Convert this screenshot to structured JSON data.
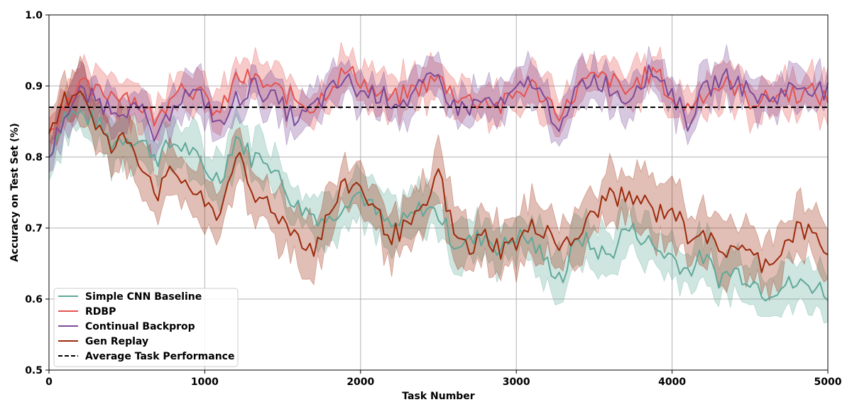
{
  "chart_data": {
    "type": "line",
    "title": "",
    "xlabel": "Task Number",
    "ylabel": "Accuracy on Test Set (%)",
    "xlim": [
      0,
      5000
    ],
    "ylim": [
      0.5,
      1.0
    ],
    "x_ticks": [
      0,
      1000,
      2000,
      3000,
      4000,
      5000
    ],
    "y_ticks": [
      0.5,
      0.6,
      0.7,
      0.8,
      0.9,
      1.0
    ],
    "x_tick_labels": [
      "0",
      "1000",
      "2000",
      "3000",
      "4000",
      "5000"
    ],
    "y_tick_labels": [
      "0.5",
      "0.6",
      "0.7",
      "0.8",
      "0.9",
      "1.0"
    ],
    "grid": true,
    "legend_position": "bottom-left",
    "x": [
      0,
      100,
      200,
      300,
      400,
      500,
      600,
      700,
      800,
      900,
      1000,
      1100,
      1200,
      1300,
      1400,
      1500,
      1600,
      1700,
      1800,
      1900,
      2000,
      2100,
      2200,
      2300,
      2400,
      2500,
      2600,
      2700,
      2800,
      2900,
      3000,
      3100,
      3200,
      3300,
      3400,
      3500,
      3600,
      3700,
      3800,
      3900,
      4000,
      4100,
      4200,
      4300,
      4400,
      4500,
      4600,
      4700,
      4800,
      4900,
      5000
    ],
    "series": [
      {
        "name": "Simple CNN Baseline",
        "color": "#5fa898",
        "band": 0.03,
        "values": [
          0.8,
          0.86,
          0.86,
          0.85,
          0.82,
          0.83,
          0.82,
          0.8,
          0.82,
          0.81,
          0.78,
          0.77,
          0.83,
          0.8,
          0.8,
          0.76,
          0.73,
          0.72,
          0.71,
          0.74,
          0.75,
          0.72,
          0.7,
          0.71,
          0.73,
          0.72,
          0.68,
          0.68,
          0.69,
          0.67,
          0.69,
          0.68,
          0.65,
          0.63,
          0.69,
          0.67,
          0.66,
          0.7,
          0.69,
          0.67,
          0.66,
          0.64,
          0.66,
          0.63,
          0.64,
          0.63,
          0.61,
          0.62,
          0.62,
          0.62,
          0.61
        ]
      },
      {
        "name": "RDBP",
        "color": "#e5524f",
        "band": 0.025,
        "values": [
          0.83,
          0.88,
          0.9,
          0.89,
          0.89,
          0.89,
          0.87,
          0.85,
          0.9,
          0.9,
          0.88,
          0.86,
          0.91,
          0.91,
          0.9,
          0.89,
          0.88,
          0.87,
          0.9,
          0.92,
          0.91,
          0.89,
          0.88,
          0.89,
          0.9,
          0.91,
          0.89,
          0.88,
          0.88,
          0.87,
          0.89,
          0.9,
          0.88,
          0.86,
          0.9,
          0.91,
          0.91,
          0.89,
          0.91,
          0.92,
          0.88,
          0.87,
          0.89,
          0.9,
          0.9,
          0.88,
          0.88,
          0.89,
          0.89,
          0.89,
          0.88
        ]
      },
      {
        "name": "Continual Backprop",
        "color": "#7c4a98",
        "band": 0.025,
        "values": [
          0.8,
          0.86,
          0.89,
          0.88,
          0.87,
          0.87,
          0.86,
          0.82,
          0.88,
          0.89,
          0.88,
          0.84,
          0.88,
          0.9,
          0.89,
          0.87,
          0.85,
          0.87,
          0.89,
          0.91,
          0.89,
          0.89,
          0.88,
          0.88,
          0.9,
          0.91,
          0.87,
          0.87,
          0.88,
          0.87,
          0.89,
          0.91,
          0.87,
          0.84,
          0.9,
          0.91,
          0.9,
          0.88,
          0.91,
          0.92,
          0.89,
          0.85,
          0.89,
          0.91,
          0.91,
          0.89,
          0.88,
          0.89,
          0.9,
          0.9,
          0.89
        ]
      },
      {
        "name": "Gen Replay",
        "color": "#9c2a0c",
        "band": 0.035,
        "values": [
          0.82,
          0.88,
          0.9,
          0.85,
          0.81,
          0.83,
          0.79,
          0.75,
          0.78,
          0.76,
          0.73,
          0.72,
          0.81,
          0.74,
          0.74,
          0.71,
          0.69,
          0.67,
          0.72,
          0.76,
          0.76,
          0.72,
          0.69,
          0.7,
          0.72,
          0.78,
          0.69,
          0.67,
          0.69,
          0.67,
          0.68,
          0.7,
          0.7,
          0.67,
          0.69,
          0.72,
          0.75,
          0.74,
          0.74,
          0.72,
          0.73,
          0.69,
          0.7,
          0.66,
          0.68,
          0.66,
          0.65,
          0.67,
          0.7,
          0.69,
          0.67
        ]
      }
    ],
    "reference_line": {
      "name": "Average Task Performance",
      "y": 0.87,
      "color": "#000000",
      "style": "dashed"
    }
  }
}
